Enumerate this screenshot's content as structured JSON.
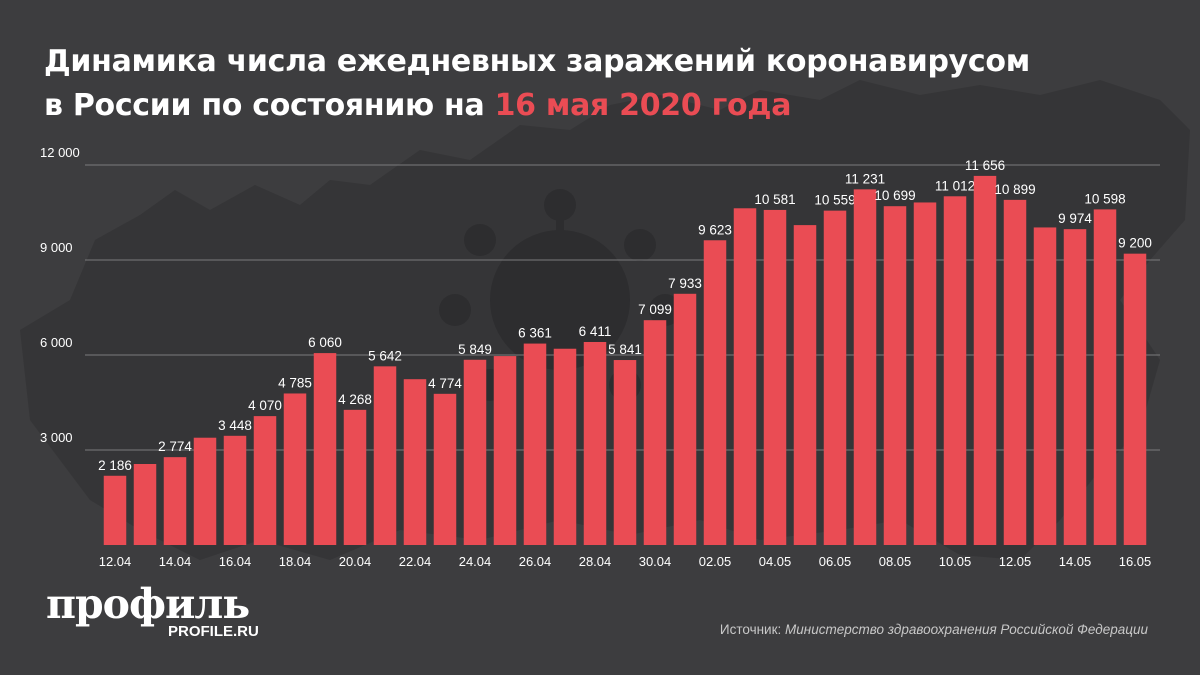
{
  "title": {
    "line1": "Динамика числа ежедневных заражений коронавирусом",
    "line2_prefix": "в России по состоянию на ",
    "highlight": "16 мая 2020 года"
  },
  "colors": {
    "bar": "#ea4c54",
    "highlight": "#ea4c54",
    "background": "#3d3d3f",
    "grid": "#7a7a7c"
  },
  "logo": {
    "word": "профиль",
    "domain": "PROFILE.RU"
  },
  "source": {
    "label": "Источник:",
    "text": "Министерство здравоохранения Российской Федерации"
  },
  "chart_data": {
    "type": "bar",
    "title": "Динамика числа ежедневных заражений коронавирусом в России по состоянию на 16 мая 2020 года",
    "categories": [
      "12.04",
      "13.04",
      "14.04",
      "15.04",
      "16.04",
      "17.04",
      "18.04",
      "19.04",
      "20.04",
      "21.04",
      "22.04",
      "23.04",
      "24.04",
      "25.04",
      "26.04",
      "27.04",
      "28.04",
      "29.04",
      "30.04",
      "01.05",
      "02.05",
      "03.05",
      "04.05",
      "05.05",
      "06.05",
      "07.05",
      "08.05",
      "09.05",
      "10.05",
      "11.05",
      "12.05",
      "13.05",
      "14.05",
      "15.05",
      "16.05"
    ],
    "values": [
      2186,
      2558,
      2774,
      3388,
      3448,
      4070,
      4785,
      6060,
      4268,
      5642,
      5236,
      4774,
      5849,
      5966,
      6361,
      6198,
      6411,
      5841,
      7099,
      7933,
      9623,
      10633,
      10581,
      10102,
      10559,
      11231,
      10699,
      10817,
      11012,
      11656,
      10899,
      10028,
      9974,
      10598,
      9200
    ],
    "data_labels": [
      "2 186",
      "",
      "2 774",
      "",
      "3 448",
      "4 070",
      "4 785",
      "6 060",
      "4 268",
      "5 642",
      "",
      "4 774",
      "5 849",
      "",
      "6 361",
      "",
      "6 411",
      "5 841",
      "7 099",
      "7 933",
      "9 623",
      "",
      "10 581",
      "",
      "10 559",
      "11 231",
      "10 699",
      "",
      "11 012",
      "11 656",
      "10 899",
      "",
      "9 974",
      "10 598",
      "9 200"
    ],
    "x_tick_labels": [
      "12.04",
      "",
      "14.04",
      "",
      "16.04",
      "",
      "18.04",
      "",
      "20.04",
      "",
      "22.04",
      "",
      "24.04",
      "",
      "26.04",
      "",
      "28.04",
      "",
      "30.04",
      "",
      "02.05",
      "",
      "04.05",
      "",
      "06.05",
      "",
      "08.05",
      "",
      "10.05",
      "",
      "12.05",
      "",
      "14.05",
      "",
      "16.05"
    ],
    "y_ticks": [
      3000,
      6000,
      9000,
      12000
    ],
    "y_tick_labels": [
      "3 000",
      "6 000",
      "9 000",
      "12 000"
    ],
    "ylim": [
      0,
      12000
    ],
    "grid": true,
    "legend": false,
    "xlabel": "",
    "ylabel": ""
  }
}
